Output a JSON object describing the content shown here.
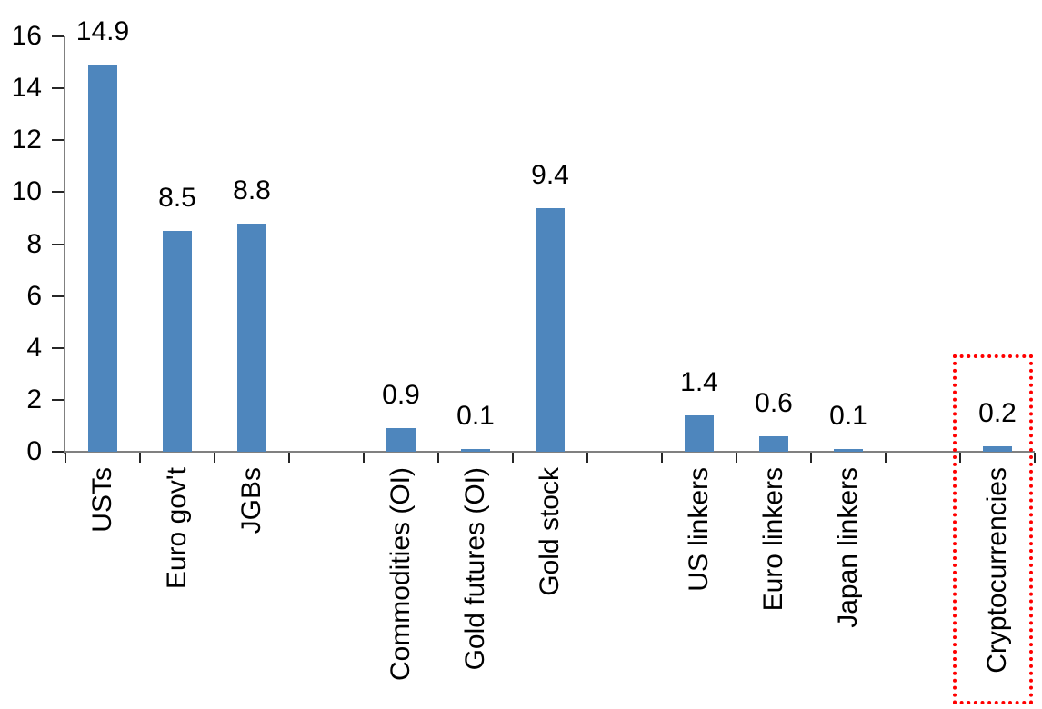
{
  "chart_data": {
    "type": "bar",
    "title": "",
    "xlabel": "",
    "ylabel": "",
    "categories": [
      "USTs",
      "Euro gov't",
      "JGBs",
      "Commodities (OI)",
      "Gold futures (OI)",
      "Gold stock",
      "US linkers",
      "Euro linkers",
      "Japan linkers",
      "Cryptocurrencies"
    ],
    "values": [
      14.9,
      8.5,
      8.8,
      0.9,
      0.1,
      9.4,
      1.4,
      0.6,
      0.1,
      0.2
    ],
    "value_labels": [
      "14.9",
      "8.5",
      "8.8",
      "0.9",
      "0.1",
      "9.4",
      "1.4",
      "0.6",
      "0.1",
      "0.2"
    ],
    "slot_indices": [
      0,
      1,
      2,
      4,
      5,
      6,
      8,
      9,
      10,
      12
    ],
    "total_slots": 13,
    "ylim": [
      0,
      16
    ],
    "yticks": [
      "0",
      "2",
      "4",
      "6",
      "8",
      "10",
      "12",
      "14",
      "16"
    ],
    "grid": false,
    "legend": false,
    "bar_color": "#4E86BD",
    "axis_line_color": "#808080",
    "tick_color": "#262626",
    "text_color": "#000000",
    "highlight": {
      "category": "Cryptocurrencies",
      "value": 0.2,
      "style": "red-dotted-box",
      "color": "#FF0000"
    }
  }
}
